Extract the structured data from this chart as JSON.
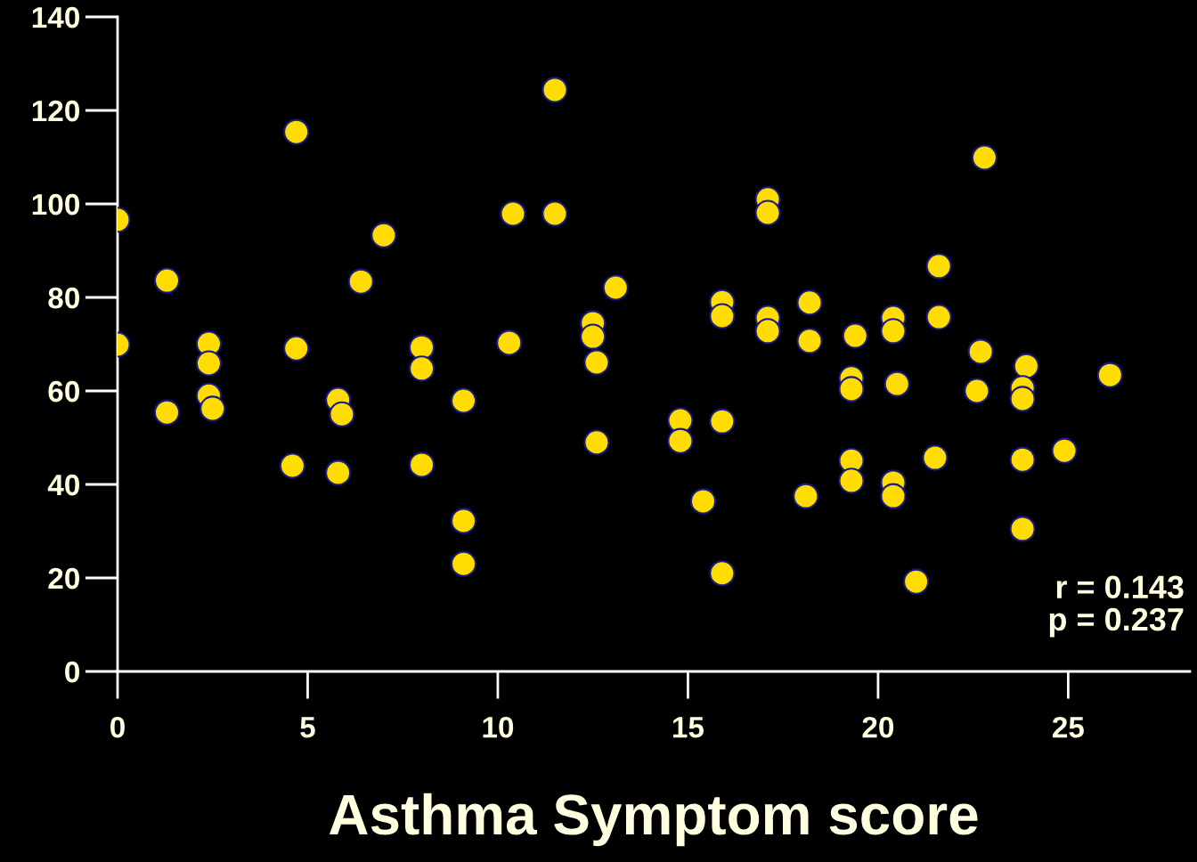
{
  "chart_data": {
    "type": "scatter",
    "xlabel": "Asthma Symptom score",
    "x": [
      0,
      0,
      1.3,
      1.3,
      2.4,
      2.4,
      2.4,
      2.5,
      4.7,
      4.7,
      4.6,
      6.4,
      7.0,
      5.8,
      5.9,
      5.8,
      8.0,
      8.0,
      8.0,
      9.1,
      9.1,
      9.1,
      10.4,
      10.3,
      11.5,
      11.5,
      13.1,
      12.5,
      12.5,
      12.6,
      12.6,
      14.8,
      14.8,
      15.4,
      15.9,
      15.9,
      15.9,
      15.9,
      17.1,
      17.1,
      17.1,
      17.1,
      18.2,
      18.2,
      18.1,
      19.4,
      19.3,
      19.3,
      19.3,
      19.3,
      20.4,
      20.4,
      20.5,
      20.4,
      20.4,
      21.0,
      21.6,
      21.6,
      21.5,
      22.8,
      22.7,
      22.6,
      23.9,
      23.8,
      23.8,
      23.8,
      23.8,
      24.9,
      26.1
    ],
    "values": [
      96.6,
      69.9,
      83.6,
      55.4,
      70.1,
      65.9,
      59.0,
      56.2,
      115.4,
      69.1,
      44.0,
      83.4,
      93.3,
      58.1,
      55.0,
      42.5,
      69.3,
      64.8,
      44.2,
      57.9,
      32.2,
      23.0,
      97.9,
      70.3,
      124.4,
      97.9,
      82.1,
      74.5,
      71.6,
      66.1,
      49.0,
      53.7,
      49.3,
      36.4,
      79.0,
      76.0,
      53.5,
      21.0,
      101.0,
      98.1,
      75.6,
      72.8,
      78.9,
      70.7,
      37.5,
      71.8,
      62.7,
      60.4,
      45.1,
      40.8,
      75.6,
      72.8,
      61.5,
      40.4,
      37.5,
      19.2,
      86.7,
      75.8,
      45.7,
      109.9,
      68.4,
      60.0,
      65.3,
      60.6,
      58.3,
      45.3,
      30.5,
      47.2,
      63.4
    ],
    "color": "#ffdd00",
    "marker": "circle",
    "xlim": [
      0,
      28.2
    ],
    "xticks": [
      0,
      5,
      10,
      15,
      20,
      25
    ],
    "ylim": [
      0,
      140
    ],
    "yticks": [
      0,
      20,
      40,
      60,
      80,
      100,
      120,
      140
    ],
    "annotations": [
      "r = 0.143",
      "p = 0.237"
    ],
    "grid": false
  }
}
